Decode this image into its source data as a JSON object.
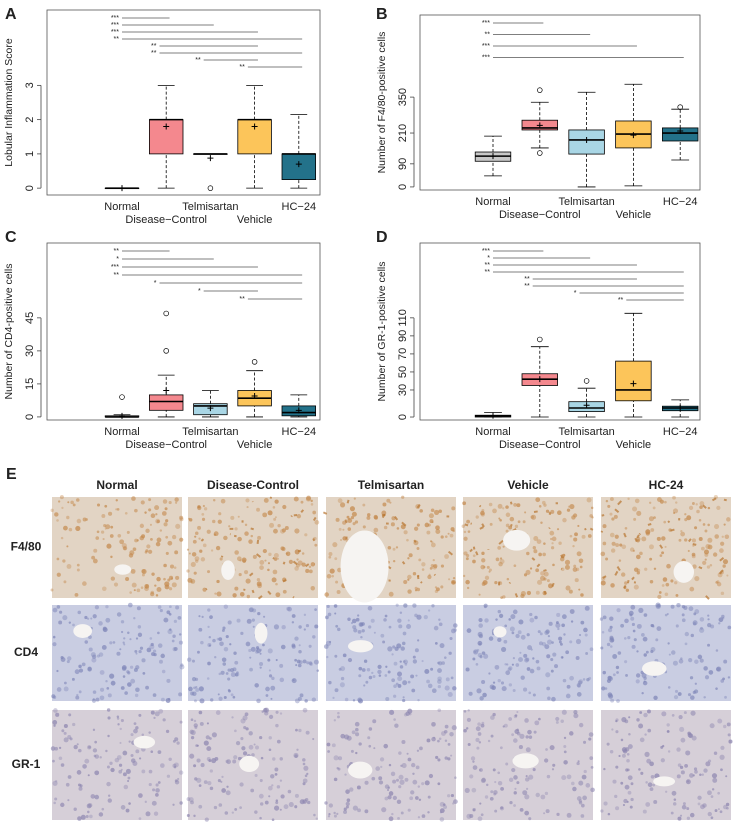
{
  "chart_data": [
    {
      "type": "box",
      "label": "A",
      "ylabel": "Lobular Inflammation Score",
      "categories": [
        "Normal",
        "Disease−Control",
        "Telmisartan",
        "Vehicle",
        "HC−24"
      ],
      "colors": [
        "#c8c8c8",
        "#f4888e",
        "#a9d6e5",
        "#fcc55a",
        "#23728a"
      ],
      "boxes": [
        {
          "min": 0,
          "q1": 0,
          "median": 0,
          "q3": 0,
          "max": 0,
          "mean": 0,
          "outliers": []
        },
        {
          "min": 0,
          "q1": 1,
          "median": 2,
          "q3": 2,
          "max": 3,
          "mean": 1.8,
          "outliers": []
        },
        {
          "min": 1,
          "q1": 1,
          "median": 1,
          "q3": 1,
          "max": 1,
          "mean": 0.875,
          "outliers": [
            0
          ]
        },
        {
          "min": 0,
          "q1": 1,
          "median": 2,
          "q3": 2,
          "max": 3,
          "mean": 1.8,
          "outliers": []
        },
        {
          "min": 0,
          "q1": 0.25,
          "median": 1,
          "q3": 1,
          "max": 2.15,
          "mean": 0.7,
          "outliers": []
        }
      ],
      "ylim": [
        -0.2,
        5.2
      ],
      "yticks": [
        0,
        1,
        2,
        3
      ],
      "comparisons": [
        {
          "label": "***",
          "pair": [
            0,
            1
          ]
        },
        {
          "label": "***",
          "pair": [
            0,
            2
          ]
        },
        {
          "label": "***",
          "pair": [
            0,
            3
          ]
        },
        {
          "label": "**",
          "pair": [
            0,
            4
          ]
        },
        {
          "label": "**",
          "pair": [
            1,
            3
          ]
        },
        {
          "label": "**",
          "pair": [
            1,
            4
          ]
        },
        {
          "label": "**",
          "pair": [
            2,
            3
          ]
        },
        {
          "label": "**",
          "pair": [
            3,
            4
          ]
        }
      ]
    },
    {
      "type": "box",
      "label": "B",
      "ylabel": "Number of F4/80-positive cells",
      "categories": [
        "Normal",
        "Disease−Control",
        "Telmisartan",
        "Vehicle",
        "HC−24"
      ],
      "colors": [
        "#c8c8c8",
        "#f4888e",
        "#a9d6e5",
        "#fcc55a",
        "#23728a"
      ],
      "boxes": [
        {
          "min": 43,
          "q1": 100,
          "median": 120,
          "q3": 136,
          "max": 198,
          "mean": 120,
          "outliers": []
        },
        {
          "min": 152,
          "q1": 222,
          "median": 230,
          "q3": 260,
          "max": 330,
          "mean": 240,
          "outliers": [
            377,
            132
          ]
        },
        {
          "min": 0,
          "q1": 128,
          "median": 183,
          "q3": 222,
          "max": 369,
          "mean": 183,
          "outliers": []
        },
        {
          "min": 4,
          "q1": 152,
          "median": 206,
          "q3": 257,
          "max": 400,
          "mean": 202,
          "outliers": []
        },
        {
          "min": 105,
          "q1": 179,
          "median": 210,
          "q3": 230,
          "max": 303,
          "mean": 218,
          "outliers": [
            311
          ]
        }
      ],
      "ylim": [
        -12,
        670
      ],
      "yticks": [
        0,
        90,
        210,
        350
      ],
      "comparisons": [
        {
          "label": "***",
          "pair": [
            0,
            1
          ]
        },
        {
          "label": "**",
          "pair": [
            0,
            2
          ]
        },
        {
          "label": "***",
          "pair": [
            0,
            3
          ]
        },
        {
          "label": "***",
          "pair": [
            0,
            4
          ]
        }
      ]
    },
    {
      "type": "box",
      "label": "C",
      "ylabel": "Number of CD4-positive cells",
      "categories": [
        "Normal",
        "Disease−Control",
        "Telmisartan",
        "Vehicle",
        "HC−24"
      ],
      "colors": [
        "#c8c8c8",
        "#f4888e",
        "#a9d6e5",
        "#fcc55a",
        "#23728a"
      ],
      "boxes": [
        {
          "min": 0,
          "q1": 0,
          "median": 0,
          "q3": 0.5,
          "max": 1,
          "mean": 0.5,
          "outliers": [
            9
          ]
        },
        {
          "min": 0,
          "q1": 3,
          "median": 7,
          "q3": 10,
          "max": 19,
          "mean": 12,
          "outliers": [
            30,
            47
          ]
        },
        {
          "min": 0,
          "q1": 1,
          "median": 5,
          "q3": 6,
          "max": 12,
          "mean": 4,
          "outliers": []
        },
        {
          "min": 0,
          "q1": 5,
          "median": 8.5,
          "q3": 12,
          "max": 21,
          "mean": 9.5,
          "outliers": [
            25
          ]
        },
        {
          "min": 0,
          "q1": 0.5,
          "median": 2,
          "q3": 5,
          "max": 10,
          "mean": 3,
          "outliers": []
        }
      ],
      "ylim": [
        -1.4,
        79
      ],
      "yticks": [
        0,
        15,
        30,
        45
      ],
      "comparisons": [
        {
          "label": "**",
          "pair": [
            0,
            1
          ]
        },
        {
          "label": "*",
          "pair": [
            0,
            2
          ]
        },
        {
          "label": "***",
          "pair": [
            0,
            3
          ]
        },
        {
          "label": "**",
          "pair": [
            0,
            4
          ]
        },
        {
          "label": "*",
          "pair": [
            1,
            4
          ]
        },
        {
          "label": "*",
          "pair": [
            2,
            3
          ]
        },
        {
          "label": "**",
          "pair": [
            3,
            4
          ]
        }
      ]
    },
    {
      "type": "box",
      "label": "D",
      "ylabel": "Number of GR-1-positive cells",
      "categories": [
        "Normal",
        "Disease−Control",
        "Telmisartan",
        "Vehicle",
        "HC−24"
      ],
      "colors": [
        "#c8c8c8",
        "#f4888e",
        "#a9d6e5",
        "#fcc55a",
        "#23728a"
      ],
      "boxes": [
        {
          "min": 0,
          "q1": 0,
          "median": 1,
          "q3": 2,
          "max": 5,
          "mean": 1.5,
          "outliers": []
        },
        {
          "min": 0,
          "q1": 35,
          "median": 42,
          "q3": 48,
          "max": 78,
          "mean": 42,
          "outliers": [
            86
          ]
        },
        {
          "min": 0,
          "q1": 6,
          "median": 10,
          "q3": 17,
          "max": 32,
          "mean": 13,
          "outliers": [
            40
          ]
        },
        {
          "min": 0,
          "q1": 18,
          "median": 30,
          "q3": 62,
          "max": 115,
          "mean": 37,
          "outliers": []
        },
        {
          "min": 0,
          "q1": 7,
          "median": 10,
          "q3": 12,
          "max": 19,
          "mean": 10,
          "outliers": []
        }
      ],
      "ylim": [
        -3.3,
        193
      ],
      "yticks": [
        0,
        30,
        50,
        70,
        90,
        110
      ],
      "comparisons": [
        {
          "label": "***",
          "pair": [
            0,
            1
          ]
        },
        {
          "label": "*",
          "pair": [
            0,
            2
          ]
        },
        {
          "label": "**",
          "pair": [
            0,
            3
          ]
        },
        {
          "label": "**",
          "pair": [
            0,
            4
          ]
        },
        {
          "label": "**",
          "pair": [
            1,
            3
          ]
        },
        {
          "label": "**",
          "pair": [
            1,
            4
          ]
        },
        {
          "label": "*",
          "pair": [
            2,
            4
          ]
        },
        {
          "label": "**",
          "pair": [
            3,
            4
          ]
        }
      ]
    }
  ],
  "micrographs": {
    "label": "E",
    "columns": [
      "Normal",
      "Disease-Control",
      "Telmisartan",
      "Vehicle",
      "HC-24"
    ],
    "rows": [
      "F4/80",
      "CD4",
      "GR-1"
    ]
  }
}
